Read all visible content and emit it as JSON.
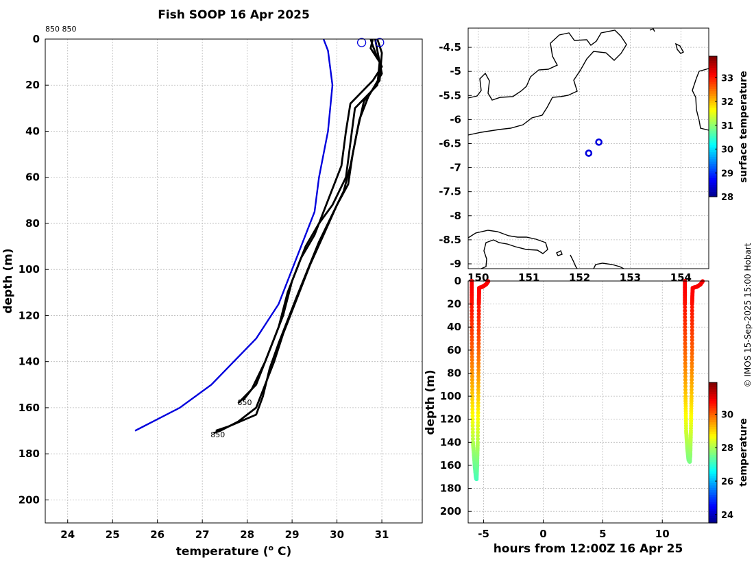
{
  "figure": {
    "title": "Fish SOOP 16 Apr 2025",
    "credit": "© IMOS 15-Sep-2025 15:00 Hobart",
    "top_left_note": "850 850"
  },
  "chart_data": [
    {
      "id": "profile",
      "type": "line",
      "title": "Fish SOOP 16 Apr 2025",
      "xlabel": "temperature (",
      "xlabel_sup": "o",
      "xlabel_tail": " C)",
      "ylabel": "depth (m)",
      "xlim": [
        23.5,
        31.9
      ],
      "ylim": [
        0,
        210
      ],
      "y_inverted": true,
      "xticks": [
        24,
        25,
        26,
        27,
        28,
        29,
        30,
        31
      ],
      "yticks": [
        0,
        20,
        40,
        60,
        80,
        100,
        120,
        140,
        160,
        180,
        200
      ],
      "grid": true,
      "climatology": {
        "color": "#0000dd",
        "points": [
          [
            29.7,
            0
          ],
          [
            29.8,
            5
          ],
          [
            29.9,
            20
          ],
          [
            29.8,
            40
          ],
          [
            29.6,
            60
          ],
          [
            29.5,
            75
          ],
          [
            29.2,
            90
          ],
          [
            29.0,
            100
          ],
          [
            28.7,
            115
          ],
          [
            28.2,
            130
          ],
          [
            27.2,
            150
          ],
          [
            26.5,
            160
          ],
          [
            25.5,
            170
          ]
        ]
      },
      "profiles": [
        {
          "color": "#000000",
          "points": [
            [
              30.75,
              0
            ],
            [
              30.8,
              3
            ],
            [
              30.9,
              8
            ],
            [
              31.0,
              12
            ],
            [
              30.8,
              18
            ],
            [
              30.3,
              28
            ],
            [
              30.2,
              40
            ],
            [
              30.1,
              55
            ],
            [
              29.8,
              70
            ],
            [
              29.5,
              85
            ],
            [
              29.2,
              95
            ],
            [
              29.0,
              105
            ],
            [
              28.8,
              120
            ],
            [
              28.5,
              135
            ],
            [
              28.2,
              150
            ],
            [
              27.8,
              158
            ]
          ]
        },
        {
          "color": "#000000",
          "points": [
            [
              30.8,
              0
            ],
            [
              30.75,
              4
            ],
            [
              30.95,
              10
            ],
            [
              30.9,
              20
            ],
            [
              30.4,
              30
            ],
            [
              30.3,
              45
            ],
            [
              30.2,
              60
            ],
            [
              29.9,
              72
            ],
            [
              29.6,
              80
            ],
            [
              29.3,
              90
            ],
            [
              29.1,
              100
            ],
            [
              28.9,
              110
            ],
            [
              28.7,
              125
            ],
            [
              28.4,
              140
            ],
            [
              28.1,
              152
            ],
            [
              27.9,
              157
            ]
          ]
        },
        {
          "color": "#000000",
          "points": [
            [
              30.85,
              0
            ],
            [
              30.9,
              5
            ],
            [
              31.0,
              15
            ],
            [
              30.7,
              25
            ],
            [
              30.5,
              35
            ],
            [
              30.35,
              50
            ],
            [
              30.25,
              63
            ],
            [
              30.0,
              72
            ],
            [
              29.7,
              85
            ],
            [
              29.4,
              98
            ],
            [
              29.2,
              108
            ],
            [
              29.0,
              118
            ],
            [
              28.8,
              128
            ],
            [
              28.6,
              140
            ],
            [
              28.4,
              150
            ],
            [
              28.2,
              160
            ],
            [
              27.8,
              166
            ],
            [
              27.4,
              170
            ],
            [
              27.25,
              171
            ]
          ]
        },
        {
          "color": "#000000",
          "points": [
            [
              30.9,
              0
            ],
            [
              31.0,
              6
            ],
            [
              30.95,
              18
            ],
            [
              30.6,
              27
            ],
            [
              30.45,
              40
            ],
            [
              30.3,
              55
            ],
            [
              30.15,
              66
            ],
            [
              29.9,
              76
            ],
            [
              29.6,
              88
            ],
            [
              29.35,
              100
            ],
            [
              29.1,
              112
            ],
            [
              28.9,
              122
            ],
            [
              28.7,
              132
            ],
            [
              28.5,
              143
            ],
            [
              28.35,
              155
            ],
            [
              28.2,
              163
            ],
            [
              27.6,
              168
            ],
            [
              27.3,
              170
            ]
          ]
        }
      ],
      "drop_markers": [
        {
          "x": 30.55,
          "y": 1.5
        },
        {
          "x": 30.95,
          "y": 1.5
        }
      ],
      "end_labels": [
        {
          "text": "850",
          "x": 27.8,
          "y": 158
        },
        {
          "text": "850",
          "x": 27.2,
          "y": 172
        }
      ]
    },
    {
      "id": "map",
      "type": "scatter",
      "xlim": [
        149.8,
        154.55
      ],
      "ylim": [
        -9.1,
        -4.1
      ],
      "xticks": [
        150,
        151,
        152,
        153,
        154
      ],
      "xtick_labels": [
        "150",
        "151",
        "152",
        "153",
        "154"
      ],
      "yticks": [
        -4.5,
        -5,
        -5.5,
        -6,
        -6.5,
        -7,
        -7.5,
        -8,
        -8.5,
        -9
      ],
      "ytick_labels": [
        "-4.5",
        "-5",
        "-5.5",
        "-6",
        "-6.5",
        "-7",
        "-7.5",
        "-8",
        "-8.5",
        "-9"
      ],
      "grid": true,
      "stations": [
        {
          "lon": 152.18,
          "lat": -6.7
        },
        {
          "lon": 152.38,
          "lat": -6.47
        }
      ],
      "station_color": "#0000dd",
      "colorbar": {
        "label": "surface temperature",
        "range": [
          28,
          33.9
        ],
        "ticks": [
          28,
          29,
          30,
          31,
          32,
          33
        ],
        "tick_labels": [
          "28",
          "29",
          "30",
          "31",
          "32",
          "33"
        ]
      }
    },
    {
      "id": "time_depth",
      "type": "scatter",
      "xlabel": "hours from 12:00Z 16 Apr 25",
      "ylabel": "depth (m)",
      "xlim": [
        -6.3,
        13.9
      ],
      "ylim": [
        0,
        210
      ],
      "y_inverted": true,
      "xticks": [
        -5,
        0,
        5,
        10
      ],
      "xtick_labels": [
        "-5",
        "0",
        "5",
        "10"
      ],
      "yticks": [
        0,
        20,
        40,
        60,
        80,
        100,
        120,
        140,
        160,
        180,
        200
      ],
      "grid": true,
      "casts": [
        {
          "down": [
            [
              -6.0,
              0
            ],
            [
              -6.0,
              20
            ],
            [
              -5.98,
              60
            ],
            [
              -5.95,
              100
            ],
            [
              -5.9,
              140
            ],
            [
              -5.75,
              160
            ],
            [
              -5.65,
              170
            ],
            [
              -5.6,
              172
            ]
          ],
          "up": [
            [
              -5.6,
              172
            ],
            [
              -5.55,
              160
            ],
            [
              -5.5,
              140
            ],
            [
              -5.45,
              100
            ],
            [
              -5.42,
              60
            ],
            [
              -5.4,
              20
            ],
            [
              -5.38,
              6
            ],
            [
              -5.1,
              5
            ],
            [
              -4.8,
              3
            ],
            [
              -4.6,
              0
            ]
          ]
        },
        {
          "down": [
            [
              11.9,
              0
            ],
            [
              11.9,
              20
            ],
            [
              11.92,
              60
            ],
            [
              11.95,
              100
            ],
            [
              12.0,
              130
            ],
            [
              12.1,
              145
            ],
            [
              12.2,
              155
            ],
            [
              12.3,
              157
            ]
          ],
          "up": [
            [
              12.3,
              157
            ],
            [
              12.35,
              150
            ],
            [
              12.4,
              130
            ],
            [
              12.45,
              100
            ],
            [
              12.5,
              60
            ],
            [
              12.5,
              20
            ],
            [
              12.55,
              6
            ],
            [
              12.9,
              5
            ],
            [
              13.2,
              3
            ],
            [
              13.4,
              0
            ]
          ]
        }
      ],
      "temp_model": {
        "surface": 30.9,
        "bottom": 27.2,
        "max_depth": 172
      },
      "colorbar": {
        "label": "temperature",
        "range": [
          23.5,
          31.9
        ],
        "ticks": [
          24,
          26,
          28,
          30
        ],
        "tick_labels": [
          "24",
          "26",
          "28",
          "30"
        ]
      }
    }
  ]
}
